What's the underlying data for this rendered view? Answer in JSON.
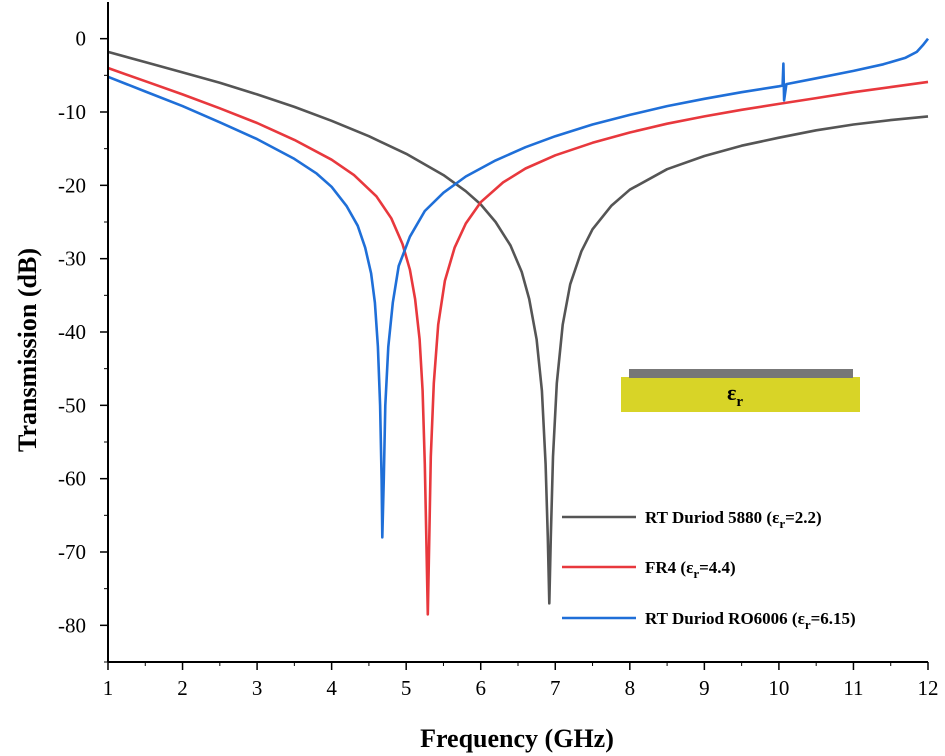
{
  "chart_data": {
    "type": "line",
    "title": "",
    "xlabel": "Frequency (GHz)",
    "ylabel": "Transmission (dB)",
    "xlim": [
      1,
      12
    ],
    "ylim": [
      -85,
      5
    ],
    "xticks": [
      1,
      2,
      3,
      4,
      5,
      6,
      7,
      8,
      9,
      10,
      11,
      12
    ],
    "yticks": [
      0,
      -10,
      -20,
      -30,
      -40,
      -50,
      -60,
      -70,
      -80
    ],
    "grid": false,
    "legend_position": "bottom-right",
    "series": [
      {
        "name_prefix": "RT Duriod 5880 (ε",
        "name_sub": "r",
        "name_suffix": "=2.2)",
        "color": "#555555",
        "points": [
          [
            1,
            -1.8
          ],
          [
            1.5,
            -3.2
          ],
          [
            2,
            -4.6
          ],
          [
            2.5,
            -6.0
          ],
          [
            3,
            -7.6
          ],
          [
            3.5,
            -9.3
          ],
          [
            4,
            -11.2
          ],
          [
            4.5,
            -13.3
          ],
          [
            5,
            -15.7
          ],
          [
            5.5,
            -18.6
          ],
          [
            5.8,
            -20.8
          ],
          [
            6.0,
            -22.6
          ],
          [
            6.2,
            -25.0
          ],
          [
            6.4,
            -28.2
          ],
          [
            6.55,
            -31.8
          ],
          [
            6.65,
            -35.5
          ],
          [
            6.75,
            -41.0
          ],
          [
            6.82,
            -48.0
          ],
          [
            6.87,
            -58.0
          ],
          [
            6.9,
            -68.0
          ],
          [
            6.92,
            -77.0
          ],
          [
            6.94,
            -68.0
          ],
          [
            6.97,
            -57.0
          ],
          [
            7.02,
            -47.0
          ],
          [
            7.1,
            -39.0
          ],
          [
            7.2,
            -33.5
          ],
          [
            7.35,
            -29.0
          ],
          [
            7.5,
            -26.0
          ],
          [
            7.75,
            -22.8
          ],
          [
            8,
            -20.6
          ],
          [
            8.5,
            -17.8
          ],
          [
            9,
            -16.0
          ],
          [
            9.5,
            -14.6
          ],
          [
            10,
            -13.5
          ],
          [
            10.5,
            -12.5
          ],
          [
            11,
            -11.7
          ],
          [
            11.5,
            -11.1
          ],
          [
            12,
            -10.6
          ]
        ]
      },
      {
        "name_prefix": "FR4 (ε",
        "name_sub": "r",
        "name_suffix": "=4.4)",
        "color": "#e8383d",
        "points": [
          [
            1,
            -4.0
          ],
          [
            1.5,
            -5.8
          ],
          [
            2,
            -7.6
          ],
          [
            2.5,
            -9.5
          ],
          [
            3,
            -11.5
          ],
          [
            3.5,
            -13.8
          ],
          [
            4,
            -16.5
          ],
          [
            4.3,
            -18.6
          ],
          [
            4.6,
            -21.5
          ],
          [
            4.8,
            -24.5
          ],
          [
            4.95,
            -28.0
          ],
          [
            5.05,
            -31.5
          ],
          [
            5.12,
            -35.5
          ],
          [
            5.18,
            -41.0
          ],
          [
            5.22,
            -48.0
          ],
          [
            5.25,
            -58.0
          ],
          [
            5.27,
            -68.0
          ],
          [
            5.29,
            -78.5
          ],
          [
            5.31,
            -68.0
          ],
          [
            5.33,
            -57.0
          ],
          [
            5.37,
            -47.0
          ],
          [
            5.43,
            -39.0
          ],
          [
            5.52,
            -33.0
          ],
          [
            5.65,
            -28.5
          ],
          [
            5.8,
            -25.2
          ],
          [
            6,
            -22.3
          ],
          [
            6.3,
            -19.6
          ],
          [
            6.6,
            -17.7
          ],
          [
            7,
            -15.9
          ],
          [
            7.5,
            -14.2
          ],
          [
            8,
            -12.8
          ],
          [
            8.5,
            -11.6
          ],
          [
            9,
            -10.6
          ],
          [
            9.5,
            -9.7
          ],
          [
            10,
            -8.9
          ],
          [
            10.5,
            -8.1
          ],
          [
            11,
            -7.3
          ],
          [
            11.5,
            -6.6
          ],
          [
            12,
            -5.9
          ]
        ]
      },
      {
        "name_prefix": "RT Duriod RO6006 (ε",
        "name_sub": "r",
        "name_suffix": "=6.15)",
        "color": "#1f6fd8",
        "points": [
          [
            1,
            -5.2
          ],
          [
            1.5,
            -7.2
          ],
          [
            2,
            -9.2
          ],
          [
            2.5,
            -11.4
          ],
          [
            3,
            -13.7
          ],
          [
            3.5,
            -16.4
          ],
          [
            3.8,
            -18.4
          ],
          [
            4.0,
            -20.2
          ],
          [
            4.2,
            -22.8
          ],
          [
            4.35,
            -25.5
          ],
          [
            4.45,
            -28.5
          ],
          [
            4.53,
            -32.0
          ],
          [
            4.58,
            -36.0
          ],
          [
            4.62,
            -42.0
          ],
          [
            4.65,
            -50.0
          ],
          [
            4.67,
            -60.0
          ],
          [
            4.68,
            -68.0
          ],
          [
            4.7,
            -60.0
          ],
          [
            4.72,
            -50.0
          ],
          [
            4.76,
            -42.0
          ],
          [
            4.82,
            -36.0
          ],
          [
            4.9,
            -31.0
          ],
          [
            5.05,
            -27.0
          ],
          [
            5.25,
            -23.5
          ],
          [
            5.5,
            -21.0
          ],
          [
            5.8,
            -18.8
          ],
          [
            6.2,
            -16.6
          ],
          [
            6.6,
            -14.8
          ],
          [
            7,
            -13.3
          ],
          [
            7.5,
            -11.7
          ],
          [
            8,
            -10.4
          ],
          [
            8.5,
            -9.2
          ],
          [
            9,
            -8.2
          ],
          [
            9.5,
            -7.3
          ],
          [
            10,
            -6.5
          ],
          [
            10.05,
            -6.4
          ],
          [
            10.06,
            -3.4
          ],
          [
            10.07,
            -8.4
          ],
          [
            10.1,
            -6.2
          ],
          [
            10.5,
            -5.4
          ],
          [
            11,
            -4.4
          ],
          [
            11.4,
            -3.5
          ],
          [
            11.7,
            -2.6
          ],
          [
            11.85,
            -1.8
          ],
          [
            11.93,
            -0.9
          ],
          [
            12,
            0.0
          ]
        ]
      }
    ],
    "inset": {
      "label": "ε",
      "label_sub": "r",
      "strip_color": "#777777",
      "substrate_color": "#d8d427"
    }
  }
}
